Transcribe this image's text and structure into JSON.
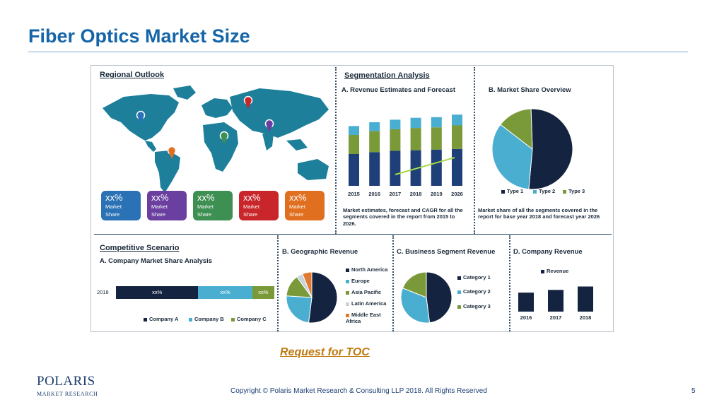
{
  "slide": {
    "title": "Fiber Optics Market Size",
    "toc_link": "Request for TOC",
    "copyright": "Copyright © Polaris Market Research & Consulting LLP 2018. All Rights Reserved",
    "page_number": "5",
    "logo": {
      "brand": "POLARIS",
      "sub": "MARKET RESEARCH"
    }
  },
  "regional": {
    "heading": "Regional Outlook",
    "cards": [
      {
        "value": "xx%",
        "label1": "Market",
        "label2": "Share",
        "color": "#2a72b5"
      },
      {
        "value": "xx%",
        "label1": "Market",
        "label2": "Share",
        "color": "#6a3fa0"
      },
      {
        "value": "xx%",
        "label1": "Market",
        "label2": "Share",
        "color": "#3e8f52"
      },
      {
        "value": "xx%",
        "label1": "Market",
        "label2": "Share",
        "color": "#c8262a"
      },
      {
        "value": "xx%",
        "label1": "Market",
        "label2": "Share",
        "color": "#e07020"
      }
    ]
  },
  "segmentation": {
    "heading": "Segmentation Analysis",
    "revenue_title": "A. Revenue Estimates and Forecast",
    "revenue_note": "Market estimates, forecast and CAGR for all the segments covered in the report from 2015 to 2026.",
    "share_title": "B. Market Share Overview",
    "share_note": "Market share of all the segments covered in the report for base year 2018 and forecast year 2026",
    "share_legend": [
      "Type 1",
      "Type 2",
      "Type 3"
    ]
  },
  "competitive": {
    "heading": "Competitive Scenario",
    "sub_title": "A. Company Market Share Analysis",
    "bar_year": "2018",
    "bar_labels": [
      "xx%",
      "xx%",
      "xx%"
    ],
    "legend": [
      "Company A",
      "Company B",
      "Company C"
    ]
  },
  "geographic": {
    "title": "B. Geographic Revenue",
    "legend": [
      "North America",
      "Europe",
      "Asia Pacific",
      "Latin America",
      "Middle East Africa"
    ]
  },
  "business": {
    "title": "C. Business Segment Revenue",
    "legend": [
      "Category 1",
      "Category 2",
      "Category 3"
    ]
  },
  "company": {
    "title": "D. Company Revenue",
    "legend": "Revenue"
  },
  "colors": {
    "navy": "#14233f",
    "teal": "#4aaed0",
    "olive": "#7a9a3a",
    "orange": "#e07a30",
    "lightblue": "#9fd0e6",
    "greyish": "#c9d3da",
    "bluebar": "#1e3f78"
  },
  "chart_data": [
    {
      "type": "bar",
      "title": "A. Revenue Estimates and Forecast",
      "categories": [
        "2015",
        "2016",
        "2017",
        "2018",
        "2019",
        "2026"
      ],
      "series": [
        {
          "values": [
            50,
            53,
            55,
            56,
            57,
            58
          ]
        },
        {
          "values": [
            30,
            33,
            34,
            35,
            35,
            37
          ]
        },
        {
          "values": [
            14,
            14,
            15,
            16,
            16,
            17
          ]
        }
      ],
      "ylim": [
        0,
        120
      ]
    },
    {
      "type": "pie",
      "title": "B. Market Share Overview",
      "labels": [
        "Type 1",
        "Type 2",
        "Type 3"
      ],
      "values": [
        52,
        34,
        14
      ]
    },
    {
      "type": "bar",
      "title": "A. Company Market Share Analysis",
      "orientation": "horizontal",
      "categories": [
        "2018"
      ],
      "series": [
        {
          "name": "Company A",
          "values": [
            52
          ]
        },
        {
          "name": "Company B",
          "values": [
            34
          ]
        },
        {
          "name": "Company C",
          "values": [
            14
          ]
        }
      ]
    },
    {
      "type": "pie",
      "title": "B. Geographic Revenue",
      "labels": [
        "North America",
        "Europe",
        "Asia Pacific",
        "Latin America",
        "Middle East Africa"
      ],
      "values": [
        52,
        24,
        14,
        4,
        6
      ]
    },
    {
      "type": "pie",
      "title": "C. Business Segment Revenue",
      "labels": [
        "Category 1",
        "Category 2",
        "Category 3"
      ],
      "values": [
        48,
        33,
        19
      ]
    },
    {
      "type": "bar",
      "title": "D. Company Revenue",
      "categories": [
        "2016",
        "2017",
        "2018"
      ],
      "series": [
        {
          "name": "Revenue",
          "values": [
            28,
            32,
            37
          ]
        }
      ],
      "ylim": [
        0,
        50
      ]
    }
  ]
}
